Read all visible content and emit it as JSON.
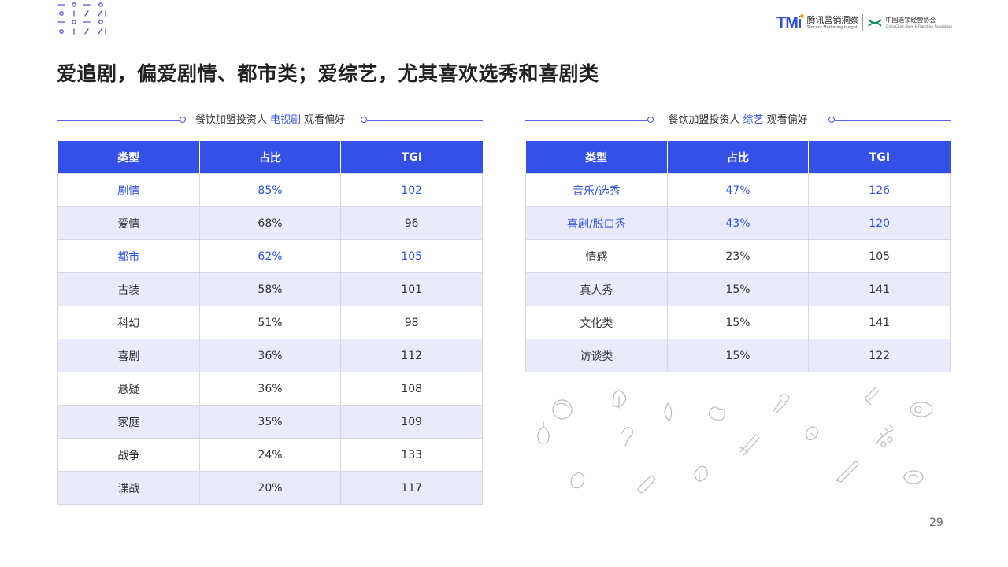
{
  "logos": {
    "tmi_mark": "TMi",
    "tmi_cn": "腾讯营销洞察",
    "tmi_en": "Tencent Marketing Insight",
    "ccfa_cn": "中国连锁经营协会",
    "ccfa_en": "China Chain Store & Franchise Association"
  },
  "title": "爱追剧，偏爱剧情、都市类；爱综艺，尤其喜欢选秀和喜剧类",
  "tv": {
    "label_prefix": "餐饮加盟投资人",
    "label_highlight": "电视剧",
    "label_suffix": "观看偏好",
    "headers": [
      "类型",
      "占比",
      "TGI"
    ],
    "rows": [
      {
        "type": "剧情",
        "share": "85%",
        "tgi": "102",
        "highlight": true
      },
      {
        "type": "爱情",
        "share": "68%",
        "tgi": "96",
        "highlight": false
      },
      {
        "type": "都市",
        "share": "62%",
        "tgi": "105",
        "highlight": true
      },
      {
        "type": "古装",
        "share": "58%",
        "tgi": "101",
        "highlight": false
      },
      {
        "type": "科幻",
        "share": "51%",
        "tgi": "98",
        "highlight": false
      },
      {
        "type": "喜剧",
        "share": "36%",
        "tgi": "112",
        "highlight": false
      },
      {
        "type": "悬疑",
        "share": "36%",
        "tgi": "108",
        "highlight": false
      },
      {
        "type": "家庭",
        "share": "35%",
        "tgi": "109",
        "highlight": false
      },
      {
        "type": "战争",
        "share": "24%",
        "tgi": "133",
        "highlight": false
      },
      {
        "type": "谍战",
        "share": "20%",
        "tgi": "117",
        "highlight": false
      }
    ]
  },
  "variety": {
    "label_prefix": "餐饮加盟投资人",
    "label_highlight": "综艺",
    "label_suffix": "观看偏好",
    "headers": [
      "类型",
      "占比",
      "TGI"
    ],
    "rows": [
      {
        "type": "音乐/选秀",
        "share": "47%",
        "tgi": "126",
        "highlight": true
      },
      {
        "type": "喜剧/脱口秀",
        "share": "43%",
        "tgi": "120",
        "highlight": true
      },
      {
        "type": "情感",
        "share": "23%",
        "tgi": "105",
        "highlight": false
      },
      {
        "type": "真人秀",
        "share": "15%",
        "tgi": "141",
        "highlight": false
      },
      {
        "type": "文化类",
        "share": "15%",
        "tgi": "141",
        "highlight": false
      },
      {
        "type": "访谈类",
        "share": "15%",
        "tgi": "122",
        "highlight": false
      }
    ]
  },
  "colors": {
    "accent": "#3152e6",
    "header_bg": "#3450e6",
    "alt_row": "#e9ebfb",
    "logo_dot": "#f5a623"
  },
  "page_number": "29"
}
